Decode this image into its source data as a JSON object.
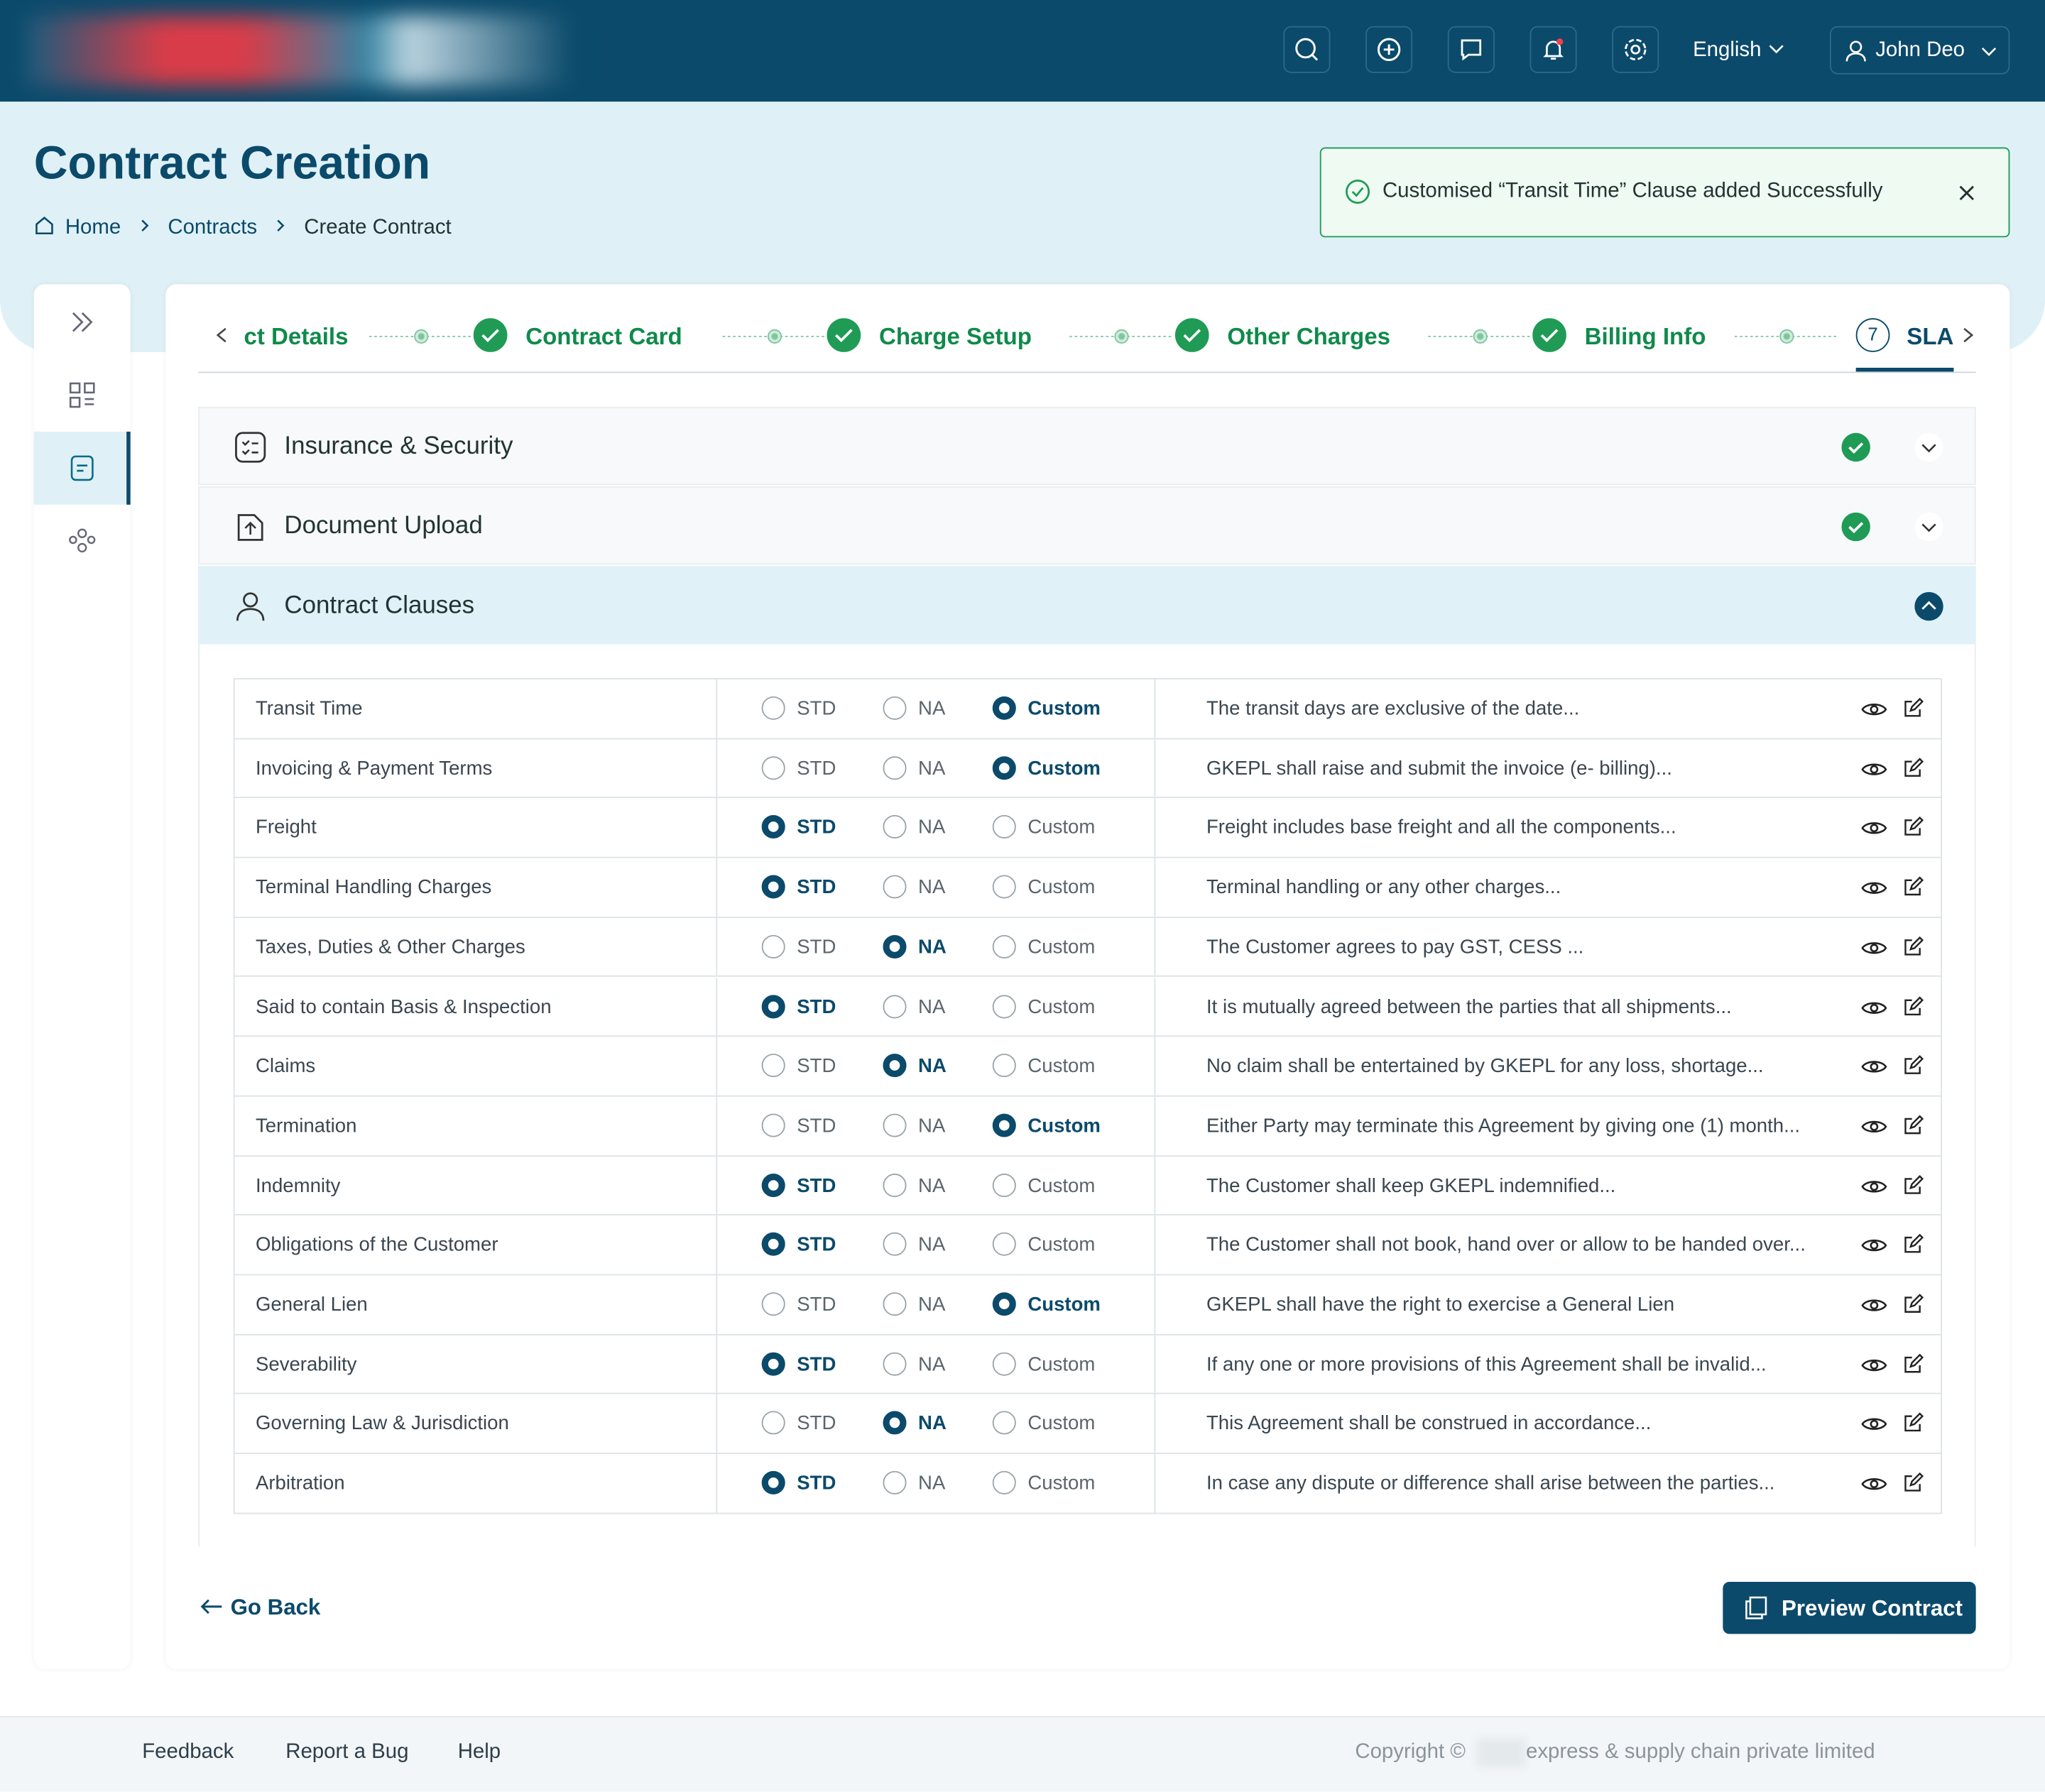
{
  "header": {
    "language": "English",
    "user": "John Deo"
  },
  "page": {
    "title": "Contract Creation",
    "breadcrumbs": [
      "Home",
      "Contracts",
      "Create Contract"
    ]
  },
  "toast": {
    "message": "Customised “Transit Time” Clause added Successfully"
  },
  "steps": {
    "items": [
      "ct Details",
      "Contract Card",
      "Charge Setup",
      "Other Charges",
      "Billing Info"
    ],
    "current": {
      "number": "7",
      "label": "SLA"
    }
  },
  "sections": [
    "Insurance & Security",
    "Document Upload",
    "Contract Clauses"
  ],
  "options": [
    "STD",
    "NA",
    "Custom"
  ],
  "clauses": [
    {
      "name": "Transit Time",
      "selected": 2,
      "description": "The transit days are exclusive of the date..."
    },
    {
      "name": "Invoicing & Payment Terms",
      "selected": 2,
      "description": "GKEPL shall raise and submit the invoice (e- billing)..."
    },
    {
      "name": "Freight",
      "selected": 0,
      "description": "Freight includes base freight and all the components..."
    },
    {
      "name": "Terminal Handling Charges",
      "selected": 0,
      "description": "Terminal handling or any other charges..."
    },
    {
      "name": "Taxes, Duties & Other Charges",
      "selected": 1,
      "description": "The Customer agrees to pay GST, CESS ..."
    },
    {
      "name": "Said to contain Basis & Inspection",
      "selected": 0,
      "description": "It is mutually agreed between the parties that all shipments..."
    },
    {
      "name": "Claims",
      "selected": 1,
      "description": "No claim shall be entertained by GKEPL for any loss, shortage..."
    },
    {
      "name": "Termination",
      "selected": 2,
      "description": "Either Party may terminate this Agreement by giving one (1) month..."
    },
    {
      "name": "Indemnity",
      "selected": 0,
      "description": "The Customer shall keep GKEPL indemnified..."
    },
    {
      "name": "Obligations of the Customer",
      "selected": 0,
      "description": "The Customer shall not book, hand over or allow to be handed over..."
    },
    {
      "name": "General Lien",
      "selected": 2,
      "description": "GKEPL shall have the right to exercise a General Lien"
    },
    {
      "name": "Severability",
      "selected": 0,
      "description": "If any one or more provisions of this Agreement shall be invalid..."
    },
    {
      "name": "Governing Law & Jurisdiction",
      "selected": 1,
      "description": "This Agreement shall be construed in accordance..."
    },
    {
      "name": "Arbitration",
      "selected": 0,
      "description": "In case any dispute or difference shall arise between the parties..."
    }
  ],
  "actions": {
    "back": "Go Back",
    "preview": "Preview Contract"
  },
  "footer": {
    "links": [
      "Feedback",
      "Report a Bug",
      "Help"
    ],
    "copyright": "Copyright ©",
    "company": "express & supply chain private limited"
  }
}
